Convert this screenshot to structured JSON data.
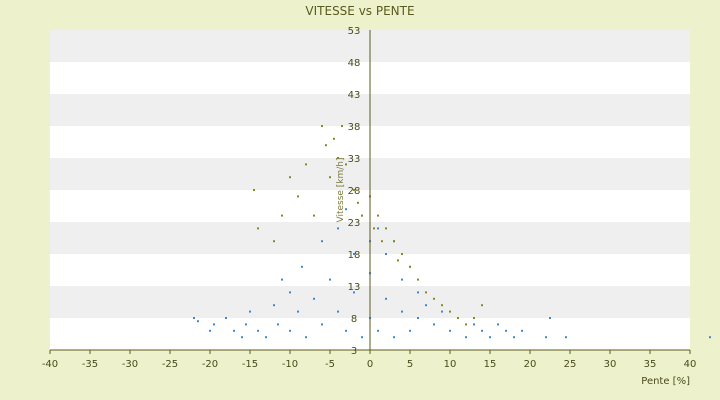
{
  "chart_data": {
    "type": "scatter",
    "title": "VITESSE vs PENTE",
    "xlabel": "Pente [%]",
    "ylabel": "Vitesse [km/h]",
    "xlim": [
      -40,
      40
    ],
    "ylim": [
      3,
      53
    ],
    "xticks": [
      "-40",
      "-35",
      "-30",
      "-25",
      "-20",
      "-15",
      "-10",
      "-5",
      "0",
      "5",
      "10",
      "15",
      "20",
      "25",
      "30",
      "35",
      "40"
    ],
    "yticks": [
      "3",
      "8",
      "13",
      "18",
      "23",
      "28",
      "33",
      "38",
      "43",
      "48",
      "53"
    ],
    "grid": "alternating horizontal bands",
    "colors": {
      "page_bg": "#eef2cc",
      "band_white": "#ffffff",
      "band_gray": "#efefef",
      "axis": "#5a5a1e",
      "series_blue": "#3a8ad6",
      "series_olive": "#8a8a22"
    },
    "series": [
      {
        "color": "#3a8ad6",
        "points": [
          [
            -22,
            8
          ],
          [
            -21.5,
            7.5
          ],
          [
            -20,
            6
          ],
          [
            -19.5,
            7
          ],
          [
            -18,
            8
          ],
          [
            -17,
            6
          ],
          [
            -16,
            5
          ],
          [
            -15.5,
            7
          ],
          [
            -15,
            9
          ],
          [
            -14,
            6
          ],
          [
            -13,
            5
          ],
          [
            -12,
            10
          ],
          [
            -11.5,
            7
          ],
          [
            -11,
            14
          ],
          [
            -10,
            6
          ],
          [
            -10,
            12
          ],
          [
            -9,
            9
          ],
          [
            -8.5,
            16
          ],
          [
            -8,
            5
          ],
          [
            -7,
            11
          ],
          [
            -6,
            20
          ],
          [
            -6,
            7
          ],
          [
            -5,
            14
          ],
          [
            -4,
            22
          ],
          [
            -4,
            9
          ],
          [
            -3,
            25
          ],
          [
            -3,
            6
          ],
          [
            -2,
            18
          ],
          [
            -2,
            12
          ],
          [
            -1,
            24
          ],
          [
            -1,
            5
          ],
          [
            0,
            20
          ],
          [
            0,
            8
          ],
          [
            0,
            15
          ],
          [
            1,
            22
          ],
          [
            1,
            6
          ],
          [
            2,
            18
          ],
          [
            2,
            11
          ],
          [
            3,
            20
          ],
          [
            3,
            5
          ],
          [
            4,
            14
          ],
          [
            4,
            9
          ],
          [
            5,
            16
          ],
          [
            5,
            6
          ],
          [
            6,
            12
          ],
          [
            6,
            8
          ],
          [
            7,
            10
          ],
          [
            8,
            7
          ],
          [
            9,
            9
          ],
          [
            10,
            6
          ],
          [
            11,
            8
          ],
          [
            12,
            5
          ],
          [
            13,
            7
          ],
          [
            14,
            6
          ],
          [
            15,
            5
          ],
          [
            16,
            7
          ],
          [
            17,
            6
          ],
          [
            18,
            5
          ],
          [
            19,
            6
          ],
          [
            22.5,
            8
          ],
          [
            22,
            5
          ],
          [
            24.5,
            5
          ],
          [
            42.5,
            5
          ]
        ]
      },
      {
        "color": "#8a8a22",
        "points": [
          [
            -14.5,
            28
          ],
          [
            -14,
            22
          ],
          [
            -12,
            20
          ],
          [
            -11,
            24
          ],
          [
            -10,
            30
          ],
          [
            -9,
            27
          ],
          [
            -8,
            32
          ],
          [
            -7,
            24
          ],
          [
            -6,
            38
          ],
          [
            -5.5,
            35
          ],
          [
            -5,
            30
          ],
          [
            -4.5,
            36
          ],
          [
            -4,
            33
          ],
          [
            -3.5,
            38
          ],
          [
            -3,
            32
          ],
          [
            -2,
            28
          ],
          [
            -1.5,
            26
          ],
          [
            -1,
            24
          ],
          [
            0,
            27
          ],
          [
            0.5,
            22
          ],
          [
            1,
            24
          ],
          [
            1.5,
            20
          ],
          [
            2,
            22
          ],
          [
            3,
            20
          ],
          [
            3.5,
            17
          ],
          [
            4,
            18
          ],
          [
            5,
            16
          ],
          [
            6,
            14
          ],
          [
            7,
            12
          ],
          [
            8,
            11
          ],
          [
            9,
            10
          ],
          [
            10,
            9
          ],
          [
            11,
            8
          ],
          [
            12,
            7
          ],
          [
            13,
            8
          ],
          [
            14,
            10
          ]
        ]
      }
    ]
  }
}
